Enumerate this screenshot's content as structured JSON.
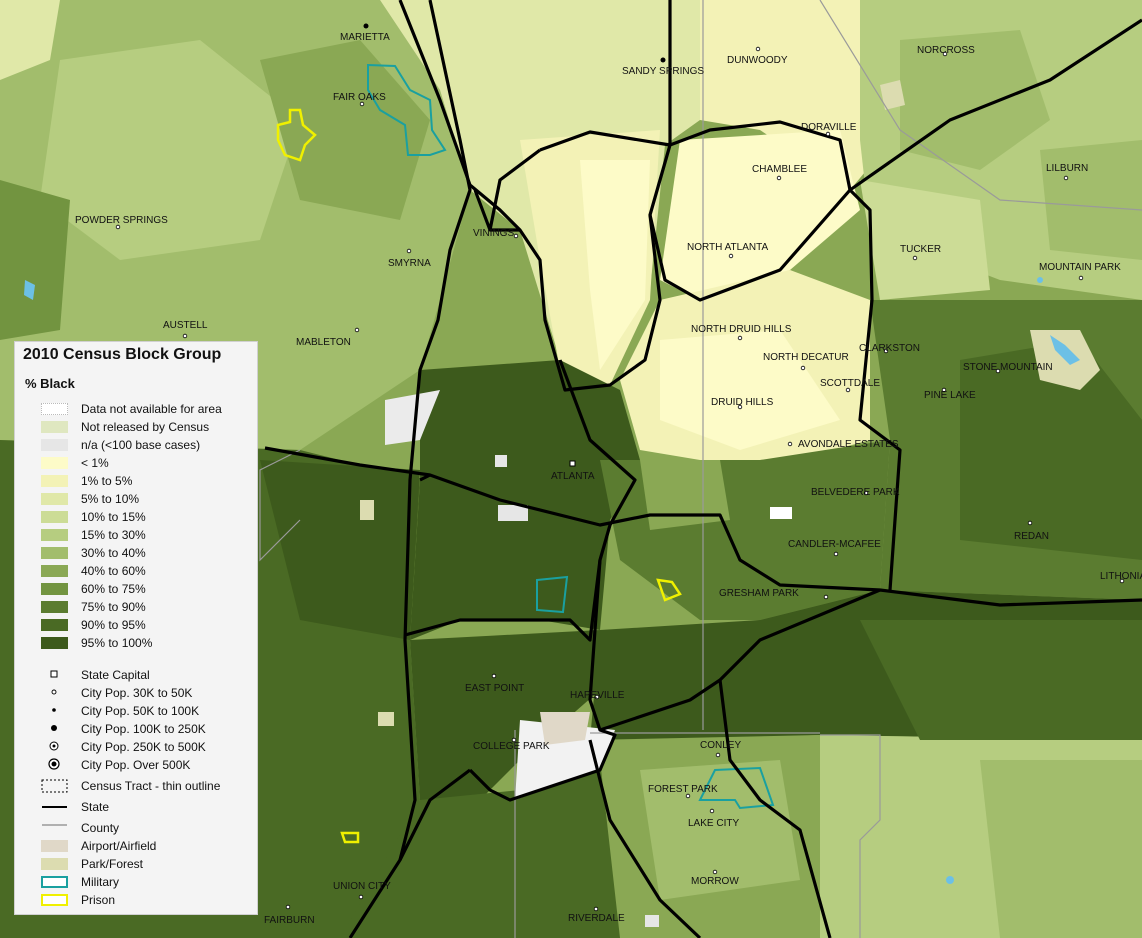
{
  "map": {
    "places": [
      {
        "name": "MARIETTA"
      },
      {
        "name": "SANDY SPRINGS"
      },
      {
        "name": "DUNWOODY"
      },
      {
        "name": "NORCROSS"
      },
      {
        "name": "FAIR OAKS"
      },
      {
        "name": "DORAVILLE"
      },
      {
        "name": "CHAMBLEE"
      },
      {
        "name": "LILBURN"
      },
      {
        "name": "POWDER SPRINGS"
      },
      {
        "name": "VININGS"
      },
      {
        "name": "NORTH ATLANTA"
      },
      {
        "name": "TUCKER"
      },
      {
        "name": "SMYRNA"
      },
      {
        "name": "MOUNTAIN PARK"
      },
      {
        "name": "AUSTELL"
      },
      {
        "name": "NORTH DRUID HILLS"
      },
      {
        "name": "MABLETON"
      },
      {
        "name": "CLARKSTON"
      },
      {
        "name": "NORTH DECATUR"
      },
      {
        "name": "STONE MOUNTAIN"
      },
      {
        "name": "SCOTTDALE"
      },
      {
        "name": "PINE LAKE"
      },
      {
        "name": "DRUID HILLS"
      },
      {
        "name": "AVONDALE ESTATES"
      },
      {
        "name": "ATLANTA"
      },
      {
        "name": "BELVEDERE PARK"
      },
      {
        "name": "REDAN"
      },
      {
        "name": "CANDLER-MCAFEE"
      },
      {
        "name": "LITHONIA"
      },
      {
        "name": "GRESHAM PARK"
      },
      {
        "name": "EAST POINT"
      },
      {
        "name": "HAPEVILLE"
      },
      {
        "name": "COLLEGE PARK"
      },
      {
        "name": "CONLEY"
      },
      {
        "name": "FOREST PARK"
      },
      {
        "name": "LAKE CITY"
      },
      {
        "name": "MORROW"
      },
      {
        "name": "UNION CITY"
      },
      {
        "name": "FAIRBURN"
      },
      {
        "name": "RIVERDALE"
      }
    ]
  },
  "legend": {
    "title": "2010 Census Block Group",
    "subtitle": "% Black",
    "items": [
      {
        "label": "Data not available for area",
        "color": "#ffffff"
      },
      {
        "label": "Not released by Census",
        "color": "#dfe7c0"
      },
      {
        "label": "n/a (<100 base cases)",
        "color": "#e6e6e6"
      },
      {
        "label": "< 1%",
        "color": "#fdfbc8"
      },
      {
        "label": "1% to 5%",
        "color": "#f3f2b6"
      },
      {
        "label": "5% to 10%",
        "color": "#e0e8a8"
      },
      {
        "label": "10% to 15%",
        "color": "#ccdc96"
      },
      {
        "label": "15% to 30%",
        "color": "#b6cd80"
      },
      {
        "label": "30% to 40%",
        "color": "#a2bd6c"
      },
      {
        "label": "40% to 60%",
        "color": "#8aa854"
      },
      {
        "label": "60% to 75%",
        "color": "#729440"
      },
      {
        "label": "75% to 90%",
        "color": "#5b7c30"
      },
      {
        "label": "90% to 95%",
        "color": "#4a6a24"
      },
      {
        "label": "95% to 100%",
        "color": "#3d5a1c"
      }
    ],
    "symbols": [
      {
        "label": "State Capital",
        "icon": "square-outline-icon"
      },
      {
        "label": "City Pop. 30K to 50K",
        "icon": "small-circle-icon"
      },
      {
        "label": "City Pop. 50K to 100K",
        "icon": "small-dot-icon"
      },
      {
        "label": "City Pop. 100K to 250K",
        "icon": "dot-icon"
      },
      {
        "label": "City Pop. 250K to 500K",
        "icon": "ringed-dot-icon"
      },
      {
        "label": "City Pop. Over 500K",
        "icon": "large-ringed-dot-icon"
      },
      {
        "label": "Census Tract - thin outline",
        "icon": "dashed-box-icon"
      },
      {
        "label": "State",
        "icon": "thick-line-icon"
      },
      {
        "label": "County",
        "icon": "gray-line-icon"
      },
      {
        "label": "Airport/Airfield",
        "color": "#e0d8c8"
      },
      {
        "label": "Park/Forest",
        "color": "#dcdcb0"
      },
      {
        "label": "Military",
        "color": "#1aa0a0"
      },
      {
        "label": "Prison",
        "color": "#f0f000"
      }
    ]
  }
}
